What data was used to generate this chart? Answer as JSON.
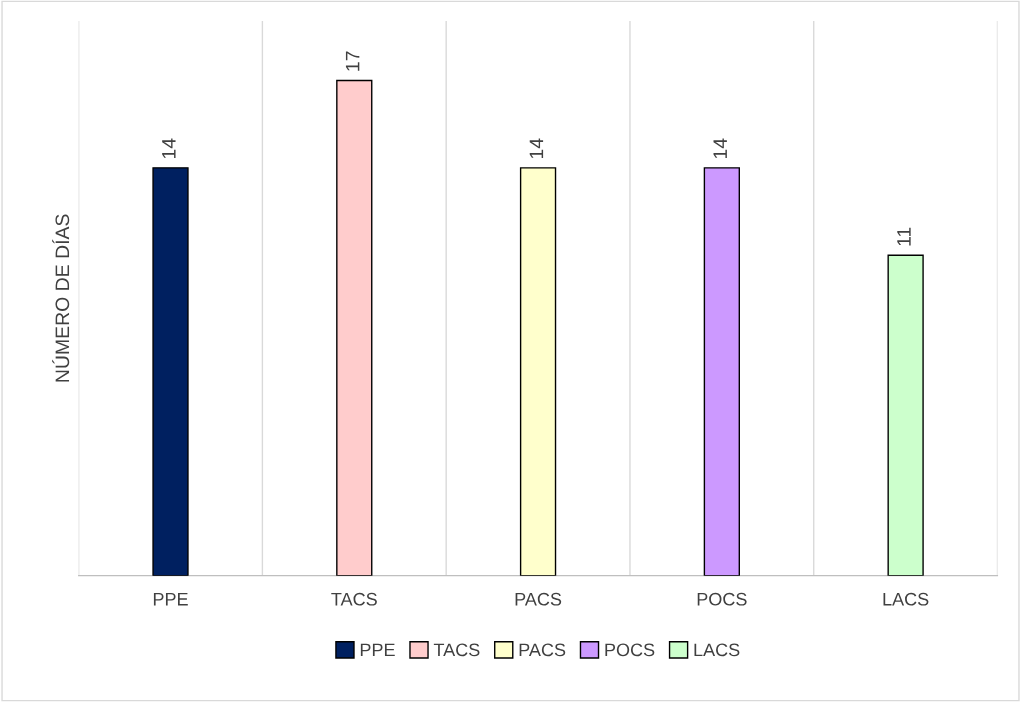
{
  "chart_data": {
    "type": "bar",
    "ylabel": "NÚMERO DE DÍAS",
    "categories": [
      "PPE",
      "TACS",
      "PACS",
      "POCS",
      "LACS"
    ],
    "series": [
      {
        "name": "PPE",
        "color": "#002060",
        "values": [
          14,
          null,
          null,
          null,
          null
        ]
      },
      {
        "name": "TACS",
        "color": "#ffcccc",
        "values": [
          null,
          17,
          null,
          null,
          null
        ]
      },
      {
        "name": "PACS",
        "color": "#ffffcc",
        "values": [
          null,
          null,
          14,
          null,
          null
        ]
      },
      {
        "name": "POCS",
        "color": "#cc99ff",
        "values": [
          null,
          null,
          null,
          14,
          null
        ]
      },
      {
        "name": "LACS",
        "color": "#ccffcc",
        "values": [
          null,
          null,
          null,
          null,
          11
        ]
      }
    ],
    "data_labels": true,
    "grid": "x",
    "legend": "bottom"
  }
}
